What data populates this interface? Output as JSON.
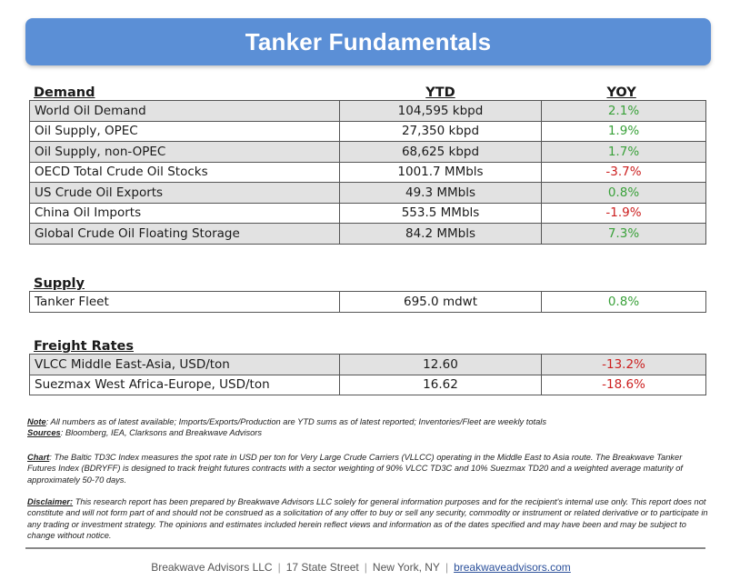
{
  "title": "Tanker Fundamentals",
  "demand": {
    "heading": "Demand",
    "col_ytd": "YTD",
    "col_yoy": "YOY",
    "rows": [
      {
        "label": "World Oil Demand",
        "ytd": "104,595 kbpd",
        "yoy": "2.1%",
        "trend": "positive"
      },
      {
        "label": "Oil Supply, OPEC",
        "ytd": "27,350 kbpd",
        "yoy": "1.9%",
        "trend": "positive"
      },
      {
        "label": "Oil Supply, non-OPEC",
        "ytd": "68,625 kbpd",
        "yoy": "1.7%",
        "trend": "positive"
      },
      {
        "label": "OECD Total Crude Oil Stocks",
        "ytd": "1001.7 MMbls",
        "yoy": "-3.7%",
        "trend": "negative"
      },
      {
        "label": "US Crude Oil Exports",
        "ytd": "49.3 MMbls",
        "yoy": "0.8%",
        "trend": "positive"
      },
      {
        "label": "China Oil Imports",
        "ytd": "553.5 MMbls",
        "yoy": "-1.9%",
        "trend": "negative"
      },
      {
        "label": "Global Crude Oil Floating Storage",
        "ytd": "84.2 MMbls",
        "yoy": "7.3%",
        "trend": "positive"
      }
    ]
  },
  "supply": {
    "heading": "Supply",
    "rows": [
      {
        "label": "Tanker Fleet",
        "ytd": "695.0 mdwt",
        "yoy": "0.8%",
        "trend": "positive"
      }
    ]
  },
  "freight": {
    "heading": "Freight Rates",
    "rows": [
      {
        "label": "VLCC Middle East-Asia, USD/ton",
        "ytd": "12.60",
        "yoy": "-13.2%",
        "trend": "negative"
      },
      {
        "label": "Suezmax West Africa-Europe, USD/ton",
        "ytd": "16.62",
        "yoy": "-18.6%",
        "trend": "negative"
      }
    ]
  },
  "notes": {
    "note_label": "Note",
    "note_text": ": All numbers as of latest available; Imports/Exports/Production are YTD sums as of latest reported; Inventories/Fleet are weekly totals",
    "sources_label": "Sources",
    "sources_text": ": Bloomberg, IEA, Clarksons and Breakwave Advisors",
    "chart_label": "Chart",
    "chart_text": ": The Baltic TD3C Index measures the spot rate in USD per ton for Very Large Crude Carriers (VLLCC) operating in the Middle East to Asia route. The Breakwave Tanker Futures Index (BDRYFF) is designed to track freight futures contracts with a sector weighting of 90% VLCC TD3C and 10% Suezmax TD20 and a weighted average maturity of approximately 50-70 days.",
    "disclaimer_label": "Disclaimer:",
    "disclaimer_text": " This research report has been prepared by Breakwave Advisors LLC solely for general information purposes and for the recipient's internal use only. This report does not constitute and will not form part of and should not be construed as a solicitation of any offer to buy or sell any security, commodity or instrument or related derivative or to participate in any trading or investment strategy. The opinions and estimates included herein reflect views and information as of the dates specified and may have been and may be subject to change without notice."
  },
  "footer": {
    "company": "Breakwave Advisors LLC",
    "address": "17 State Street",
    "city": "New York, NY",
    "website": "breakwaveadvisors.com"
  },
  "colors": {
    "banner": "#5b8fd6",
    "positive": "#3aa13a",
    "negative": "#cc1f1f",
    "shaded_row": "#e2e2e2"
  }
}
